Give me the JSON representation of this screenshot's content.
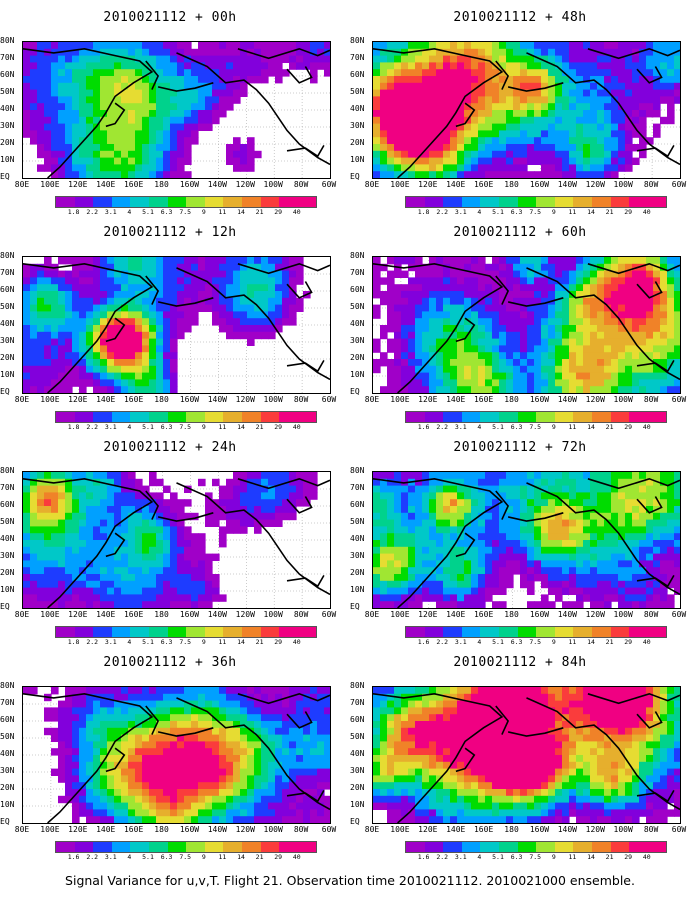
{
  "panels": [
    {
      "title": "2010021112 + 00h",
      "coverage": 0.35,
      "intensity": 0.45,
      "seed": 11
    },
    {
      "title": "2010021112 + 48h",
      "coverage": 0.78,
      "intensity": 0.6,
      "seed": 23
    },
    {
      "title": "2010021112 + 12h",
      "coverage": 0.5,
      "intensity": 0.45,
      "seed": 37
    },
    {
      "title": "2010021112 + 60h",
      "coverage": 0.82,
      "intensity": 0.62,
      "seed": 41
    },
    {
      "title": "2010021112 + 24h",
      "coverage": 0.62,
      "intensity": 0.48,
      "seed": 53
    },
    {
      "title": "2010021112 + 72h",
      "coverage": 0.92,
      "intensity": 0.66,
      "seed": 67
    },
    {
      "title": "2010021112 + 36h",
      "coverage": 0.7,
      "intensity": 0.52,
      "seed": 71
    },
    {
      "title": "2010021112 + 84h",
      "coverage": 0.94,
      "intensity": 0.7,
      "seed": 89
    }
  ],
  "lat_labels": [
    "80N",
    "70N",
    "60N",
    "50N",
    "40N",
    "30N",
    "20N",
    "10N",
    "EQ"
  ],
  "lon_labels": [
    "80E",
    "100E",
    "120E",
    "140E",
    "160E",
    "180",
    "160W",
    "140W",
    "120W",
    "100W",
    "80W",
    "60W"
  ],
  "colorbar": {
    "labels": [
      "1.8",
      "2.2",
      "3.1",
      "4",
      "5.1",
      "6.3",
      "7.5",
      "9",
      "11",
      "14",
      "21",
      "29",
      "40"
    ],
    "labels_bottom_left": [
      "1.8",
      "1.8",
      "1.8",
      "1.6",
      "1.8",
      "1.6",
      "1.6",
      "1.6"
    ],
    "colors": [
      "#a000c8",
      "#8200dc",
      "#1e3cff",
      "#00a0ff",
      "#00c8c8",
      "#00d28c",
      "#00dc00",
      "#a0e632",
      "#e6dc32",
      "#e6af2d",
      "#f08228",
      "#fa3c3c",
      "#f00082"
    ]
  },
  "caption": "Signal Variance for u,v,T. Flight 21. Observation time 2010021112. 2010021000 ensemble."
}
